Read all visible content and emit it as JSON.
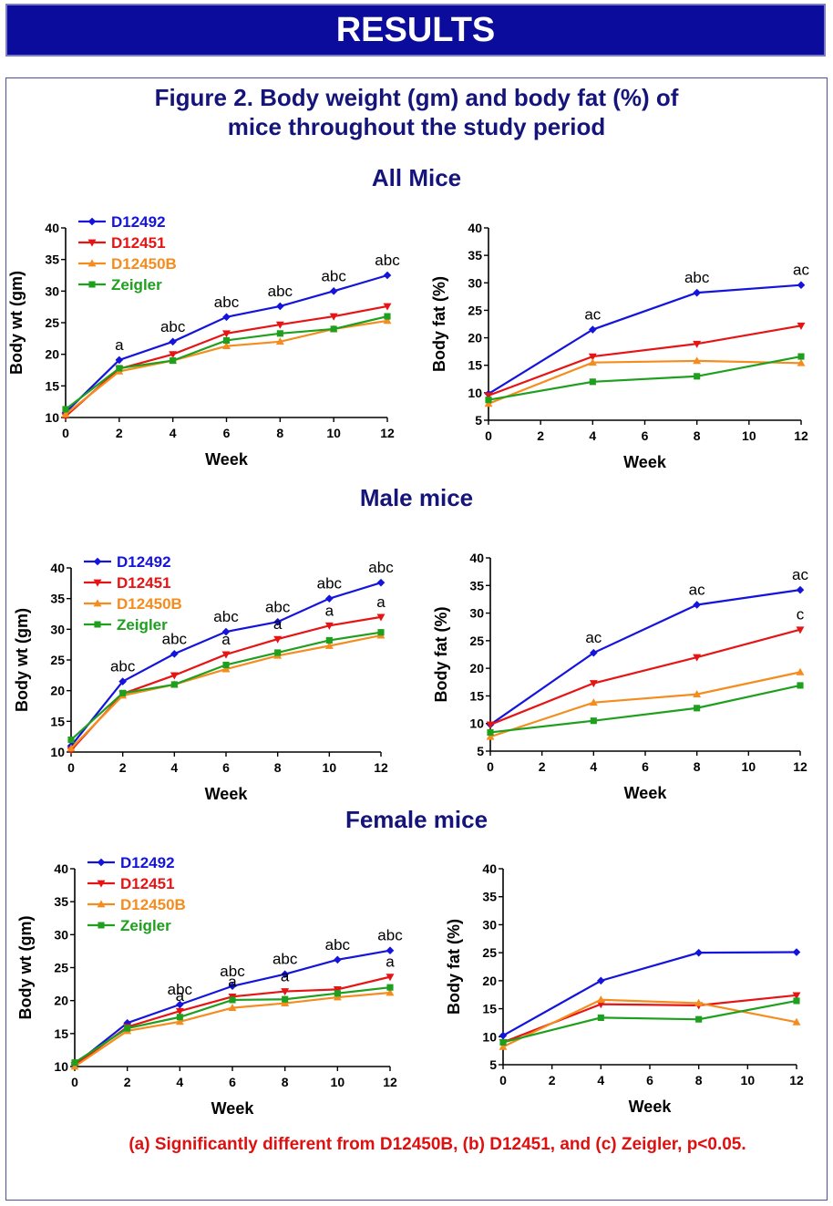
{
  "header": {
    "banner": "RESULTS"
  },
  "figure": {
    "title_line1": "Figure 2.  Body weight (gm) and body fat (%) of",
    "title_line2": "mice throughout the study period"
  },
  "sections": [
    "All Mice",
    "Male mice",
    "Female mice"
  ],
  "footnote": "(a) Significantly different from D12450B, (b) D12451, and (c) Zeigler, p<0.05.",
  "colors": {
    "D12492": "#1414dc",
    "D12451": "#e61414",
    "D12450B": "#f58c1e",
    "Zeigler": "#1ea01e"
  },
  "chart_data": [
    {
      "type": "line",
      "group": "All Mice",
      "xlabel": "Week",
      "ylabel": "Body wt (gm)",
      "xlim": [
        0,
        12
      ],
      "ylim": [
        10,
        40
      ],
      "xticks": [
        0,
        2,
        4,
        6,
        8,
        10,
        12
      ],
      "yticks": [
        10,
        15,
        20,
        25,
        30,
        35,
        40
      ],
      "legend": "top-left",
      "series": [
        {
          "name": "D12492",
          "x": [
            0,
            2,
            4,
            6,
            8,
            10,
            12
          ],
          "y": [
            10.8,
            19.1,
            22.0,
            25.9,
            27.6,
            30.0,
            32.5
          ]
        },
        {
          "name": "D12451",
          "x": [
            0,
            2,
            4,
            6,
            8,
            10,
            12
          ],
          "y": [
            10.2,
            17.7,
            20.0,
            23.3,
            24.7,
            26.0,
            27.6
          ]
        },
        {
          "name": "D12450B",
          "x": [
            0,
            2,
            4,
            6,
            8,
            10,
            12
          ],
          "y": [
            10.5,
            17.3,
            19.0,
            21.3,
            22.0,
            24.0,
            25.3
          ]
        },
        {
          "name": "Zeigler",
          "x": [
            0,
            2,
            4,
            6,
            8,
            10,
            12
          ],
          "y": [
            11.3,
            17.8,
            19.0,
            22.2,
            23.3,
            24.0,
            26.0
          ]
        }
      ],
      "annotations": [
        {
          "x": 2,
          "y": 19.1,
          "text": "a"
        },
        {
          "x": 4,
          "y": 22.0,
          "text": "abc"
        },
        {
          "x": 6,
          "y": 25.9,
          "text": "abc"
        },
        {
          "x": 8,
          "y": 27.6,
          "text": "abc"
        },
        {
          "x": 10,
          "y": 30.0,
          "text": "abc"
        },
        {
          "x": 12,
          "y": 32.5,
          "text": "abc"
        }
      ]
    },
    {
      "type": "line",
      "group": "All Mice",
      "xlabel": "Week",
      "ylabel": "Body fat (%)",
      "xlim": [
        0,
        12
      ],
      "ylim": [
        5,
        40
      ],
      "xticks": [
        0,
        2,
        4,
        6,
        8,
        10,
        12
      ],
      "yticks": [
        5,
        10,
        15,
        20,
        25,
        30,
        35,
        40
      ],
      "series": [
        {
          "name": "D12492",
          "x": [
            0,
            4,
            8,
            12
          ],
          "y": [
            9.8,
            21.5,
            28.2,
            29.6
          ]
        },
        {
          "name": "D12451",
          "x": [
            0,
            4,
            8,
            12
          ],
          "y": [
            9.5,
            16.6,
            18.9,
            22.2
          ]
        },
        {
          "name": "D12450B",
          "x": [
            0,
            4,
            8,
            12
          ],
          "y": [
            8.0,
            15.5,
            15.8,
            15.4
          ]
        },
        {
          "name": "Zeigler",
          "x": [
            0,
            4,
            8,
            12
          ],
          "y": [
            8.7,
            12.0,
            13.0,
            16.6
          ]
        }
      ],
      "annotations": [
        {
          "x": 4,
          "y": 21.5,
          "text": "ac"
        },
        {
          "x": 8,
          "y": 28.2,
          "text": "abc"
        },
        {
          "x": 12,
          "y": 29.6,
          "text": "ac"
        }
      ]
    },
    {
      "type": "line",
      "group": "Male mice",
      "xlabel": "Week",
      "ylabel": "Body wt (gm)",
      "xlim": [
        0,
        12
      ],
      "ylim": [
        10,
        40
      ],
      "xticks": [
        0,
        2,
        4,
        6,
        8,
        10,
        12
      ],
      "yticks": [
        10,
        15,
        20,
        25,
        30,
        35,
        40
      ],
      "legend": "top-left",
      "series": [
        {
          "name": "D12492",
          "x": [
            0,
            2,
            4,
            6,
            8,
            10,
            12
          ],
          "y": [
            11.0,
            21.5,
            26.0,
            29.6,
            31.2,
            35.0,
            37.6
          ]
        },
        {
          "name": "D12451",
          "x": [
            0,
            2,
            4,
            6,
            8,
            10,
            12
          ],
          "y": [
            10.3,
            19.5,
            22.5,
            25.9,
            28.4,
            30.6,
            32.0
          ]
        },
        {
          "name": "D12450B",
          "x": [
            0,
            2,
            4,
            6,
            8,
            10,
            12
          ],
          "y": [
            10.6,
            19.2,
            21.0,
            23.5,
            25.7,
            27.3,
            29.0
          ]
        },
        {
          "name": "Zeigler",
          "x": [
            0,
            2,
            4,
            6,
            8,
            10,
            12
          ],
          "y": [
            12.0,
            19.6,
            21.0,
            24.2,
            26.2,
            28.2,
            29.5
          ]
        }
      ],
      "annotations": [
        {
          "x": 2,
          "y": 21.5,
          "text": "abc"
        },
        {
          "x": 4,
          "y": 26.0,
          "text": "abc"
        },
        {
          "x": 6,
          "y": 29.6,
          "text": "abc"
        },
        {
          "x": 8,
          "y": 31.2,
          "text": "abc"
        },
        {
          "x": 10,
          "y": 35.0,
          "text": "abc"
        },
        {
          "x": 12,
          "y": 37.6,
          "text": "abc"
        },
        {
          "x": 6,
          "y": 25.9,
          "text": "a"
        },
        {
          "x": 8,
          "y": 28.4,
          "text": "a"
        },
        {
          "x": 10,
          "y": 30.6,
          "text": "a"
        },
        {
          "x": 12,
          "y": 32.0,
          "text": "a"
        }
      ]
    },
    {
      "type": "line",
      "group": "Male mice",
      "xlabel": "Week",
      "ylabel": "Body fat (%)",
      "xlim": [
        0,
        12
      ],
      "ylim": [
        5,
        40
      ],
      "xticks": [
        0,
        2,
        4,
        6,
        8,
        10,
        12
      ],
      "yticks": [
        5,
        10,
        15,
        20,
        25,
        30,
        35,
        40
      ],
      "series": [
        {
          "name": "D12492",
          "x": [
            0,
            4,
            8,
            12
          ],
          "y": [
            9.8,
            22.8,
            31.5,
            34.2
          ]
        },
        {
          "name": "D12451",
          "x": [
            0,
            4,
            8,
            12
          ],
          "y": [
            9.8,
            17.3,
            22.0,
            27.0
          ]
        },
        {
          "name": "D12450B",
          "x": [
            0,
            4,
            8,
            12
          ],
          "y": [
            7.6,
            13.8,
            15.3,
            19.3
          ]
        },
        {
          "name": "Zeigler",
          "x": [
            0,
            4,
            8,
            12
          ],
          "y": [
            8.4,
            10.5,
            12.8,
            16.9
          ]
        }
      ],
      "annotations": [
        {
          "x": 4,
          "y": 22.8,
          "text": "ac"
        },
        {
          "x": 8,
          "y": 31.5,
          "text": "ac"
        },
        {
          "x": 12,
          "y": 34.2,
          "text": "ac"
        },
        {
          "x": 12,
          "y": 27.0,
          "text": "c"
        }
      ]
    },
    {
      "type": "line",
      "group": "Female mice",
      "xlabel": "Week",
      "ylabel": "Body wt (gm)",
      "xlim": [
        0,
        12
      ],
      "ylim": [
        10,
        40
      ],
      "xticks": [
        0,
        2,
        4,
        6,
        8,
        10,
        12
      ],
      "yticks": [
        10,
        15,
        20,
        25,
        30,
        35,
        40
      ],
      "legend": "top-left",
      "series": [
        {
          "name": "D12492",
          "x": [
            0,
            2,
            4,
            6,
            8,
            10,
            12
          ],
          "y": [
            10.3,
            16.6,
            19.4,
            22.2,
            24.0,
            26.2,
            27.6
          ]
        },
        {
          "name": "D12451",
          "x": [
            0,
            2,
            4,
            6,
            8,
            10,
            12
          ],
          "y": [
            10.2,
            16.0,
            18.4,
            20.6,
            21.4,
            21.7,
            23.6
          ]
        },
        {
          "name": "D12450B",
          "x": [
            0,
            2,
            4,
            6,
            8,
            10,
            12
          ],
          "y": [
            10.0,
            15.4,
            16.8,
            18.9,
            19.6,
            20.5,
            21.2
          ]
        },
        {
          "name": "Zeigler",
          "x": [
            0,
            2,
            4,
            6,
            8,
            10,
            12
          ],
          "y": [
            10.6,
            15.8,
            17.5,
            20.1,
            20.2,
            21.1,
            22.0
          ]
        }
      ],
      "annotations": [
        {
          "x": 4,
          "y": 19.4,
          "text": "abc"
        },
        {
          "x": 6,
          "y": 22.2,
          "text": "abc"
        },
        {
          "x": 8,
          "y": 24.0,
          "text": "abc"
        },
        {
          "x": 10,
          "y": 26.2,
          "text": "abc"
        },
        {
          "x": 12,
          "y": 27.6,
          "text": "abc"
        },
        {
          "x": 4,
          "y": 18.4,
          "text": "a"
        },
        {
          "x": 6,
          "y": 20.6,
          "text": "a"
        },
        {
          "x": 8,
          "y": 21.4,
          "text": "a"
        },
        {
          "x": 12,
          "y": 23.6,
          "text": "a"
        }
      ]
    },
    {
      "type": "line",
      "group": "Female mice",
      "xlabel": "Week",
      "ylabel": "Body fat (%)",
      "xlim": [
        0,
        12
      ],
      "ylim": [
        5,
        40
      ],
      "xticks": [
        0,
        2,
        4,
        6,
        8,
        10,
        12
      ],
      "yticks": [
        5,
        10,
        15,
        20,
        25,
        30,
        35,
        40
      ],
      "series": [
        {
          "name": "D12492",
          "x": [
            0,
            4,
            8,
            12
          ],
          "y": [
            10.2,
            20.0,
            25.0,
            25.1
          ]
        },
        {
          "name": "D12451",
          "x": [
            0,
            4,
            8,
            12
          ],
          "y": [
            9.0,
            15.8,
            15.6,
            17.4
          ]
        },
        {
          "name": "D12450B",
          "x": [
            0,
            4,
            8,
            12
          ],
          "y": [
            8.2,
            16.6,
            16.0,
            12.6
          ]
        },
        {
          "name": "Zeigler",
          "x": [
            0,
            4,
            8,
            12
          ],
          "y": [
            9.0,
            13.4,
            13.1,
            16.4
          ]
        }
      ],
      "annotations": []
    }
  ]
}
